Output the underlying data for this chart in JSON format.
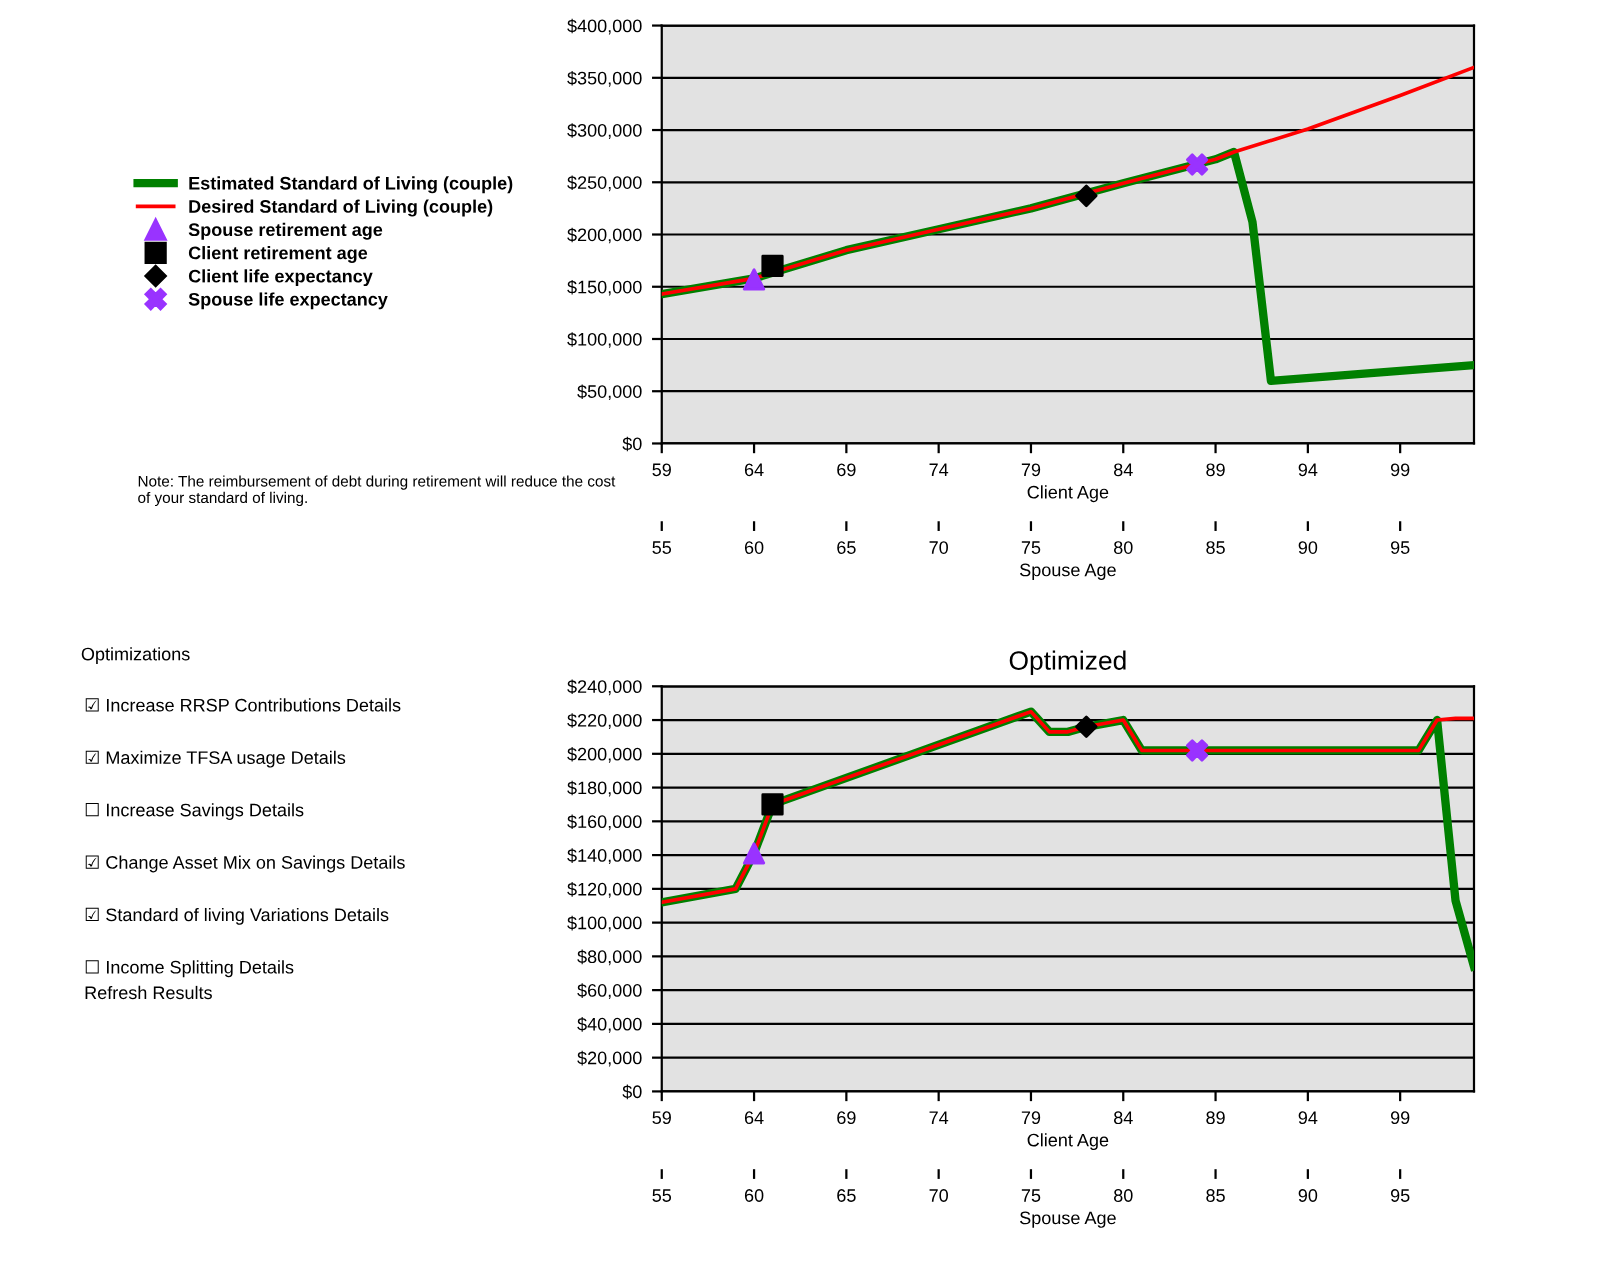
{
  "chart_data": [
    {
      "type": "line",
      "xlabel": "Client Age",
      "x2label": "Spouse Age",
      "xlim": [
        59,
        103
      ],
      "xticks": [
        59,
        64,
        69,
        74,
        79,
        84,
        89,
        94,
        99
      ],
      "x2lim": [
        55,
        99
      ],
      "x2ticks": [
        55,
        60,
        65,
        70,
        75,
        80,
        85,
        90,
        95
      ],
      "ylim": [
        0,
        400000
      ],
      "yticks": [
        {
          "value": 0,
          "label": "$0"
        },
        {
          "value": 50000,
          "label": "$50,000"
        },
        {
          "value": 100000,
          "label": "$100,000"
        },
        {
          "value": 150000,
          "label": "$150,000"
        },
        {
          "value": 200000,
          "label": "$200,000"
        },
        {
          "value": 250000,
          "label": "$250,000"
        },
        {
          "value": 300000,
          "label": "$300,000"
        },
        {
          "value": 350000,
          "label": "$350,000"
        },
        {
          "value": 400000,
          "label": "$400,000"
        }
      ],
      "grid": "y",
      "legend": "left",
      "annotations": [
        "Note: The reimbursement of debt during retirement will reduce the cost of your standard of living."
      ],
      "series": [
        {
          "name": "Estimated Standard of Living (couple)",
          "color": "#008000",
          "x": [
            59,
            64,
            69,
            74,
            79,
            84,
            89,
            90,
            91,
            92,
            103
          ],
          "values": [
            143000,
            158000,
            185000,
            205000,
            225000,
            249000,
            272000,
            279000,
            212000,
            60000,
            75000
          ]
        },
        {
          "name": "Desired Standard of Living (couple)",
          "color": "#ff0000",
          "x": [
            59,
            64,
            69,
            74,
            79,
            84,
            89,
            90,
            94,
            99,
            103
          ],
          "values": [
            143000,
            158000,
            185000,
            205000,
            225000,
            249000,
            272000,
            279000,
            301000,
            333000,
            360000
          ]
        },
        {
          "name": "Spouse retirement age",
          "type": "scatter",
          "marker": "triangle",
          "color": "#9933ff",
          "x": [
            64
          ],
          "values": [
            157000
          ]
        },
        {
          "name": "Client retirement age",
          "type": "scatter",
          "marker": "square",
          "color": "#000000",
          "x": [
            65
          ],
          "values": [
            170000
          ]
        },
        {
          "name": "Client life expectancy",
          "type": "scatter",
          "marker": "diamond",
          "color": "#000000",
          "x": [
            82
          ],
          "values": [
            237000
          ]
        },
        {
          "name": "Spouse life expectancy",
          "type": "scatter",
          "marker": "cross",
          "color": "#9933ff",
          "x": [
            88
          ],
          "values": [
            267000
          ]
        }
      ]
    },
    {
      "type": "line",
      "title": "Optimized",
      "xlabel": "Client Age",
      "x2label": "Spouse Age",
      "xlim": [
        59,
        103
      ],
      "xticks": [
        59,
        64,
        69,
        74,
        79,
        84,
        89,
        94,
        99
      ],
      "x2lim": [
        55,
        99
      ],
      "x2ticks": [
        55,
        60,
        65,
        70,
        75,
        80,
        85,
        90,
        95
      ],
      "ylim": [
        0,
        240000
      ],
      "yticks": [
        {
          "value": 0,
          "label": "$0"
        },
        {
          "value": 20000,
          "label": "$20,000"
        },
        {
          "value": 40000,
          "label": "$40,000"
        },
        {
          "value": 60000,
          "label": "$60,000"
        },
        {
          "value": 80000,
          "label": "$80,000"
        },
        {
          "value": 100000,
          "label": "$100,000"
        },
        {
          "value": 120000,
          "label": "$120,000"
        },
        {
          "value": 140000,
          "label": "$140,000"
        },
        {
          "value": 160000,
          "label": "$160,000"
        },
        {
          "value": 180000,
          "label": "$180,000"
        },
        {
          "value": 200000,
          "label": "$200,000"
        },
        {
          "value": 220000,
          "label": "$220,000"
        },
        {
          "value": 240000,
          "label": "$240,000"
        }
      ],
      "grid": "y",
      "series": [
        {
          "color": "#008000",
          "x": [
            59,
            63,
            64,
            65,
            79,
            80,
            81,
            82,
            84,
            85,
            100,
            101,
            102,
            103
          ],
          "values": [
            112000,
            120000,
            141000,
            170000,
            225000,
            213000,
            213000,
            216000,
            220000,
            202000,
            202000,
            220000,
            113000,
            74000
          ]
        },
        {
          "color": "#ff0000",
          "x": [
            59,
            63,
            64,
            65,
            79,
            80,
            81,
            82,
            84,
            85,
            100,
            101,
            102,
            103
          ],
          "values": [
            112000,
            120000,
            141000,
            170000,
            225000,
            213000,
            213000,
            216000,
            220000,
            202000,
            202000,
            220000,
            221000,
            221000
          ]
        },
        {
          "type": "scatter",
          "marker": "triangle",
          "color": "#9933ff",
          "x": [
            64
          ],
          "values": [
            141000
          ]
        },
        {
          "type": "scatter",
          "marker": "square",
          "color": "#000000",
          "x": [
            65
          ],
          "values": [
            170000
          ]
        },
        {
          "type": "scatter",
          "marker": "diamond",
          "color": "#000000",
          "x": [
            82
          ],
          "values": [
            216000
          ]
        },
        {
          "type": "scatter",
          "marker": "cross",
          "color": "#9933ff",
          "x": [
            88
          ],
          "values": [
            202000
          ]
        }
      ]
    },
    {
      "type": "other",
      "title": "Optimizations",
      "annotations": [
        "☑ Increase RRSP Contributions Details",
        "☑ Maximize TFSA usage Details",
        "☐ Increase Savings Details",
        "☑ Change Asset Mix on Savings Details",
        "☑ Standard of living Variations Details",
        "☐ Income Splitting Details",
        "Refresh Results"
      ]
    }
  ]
}
